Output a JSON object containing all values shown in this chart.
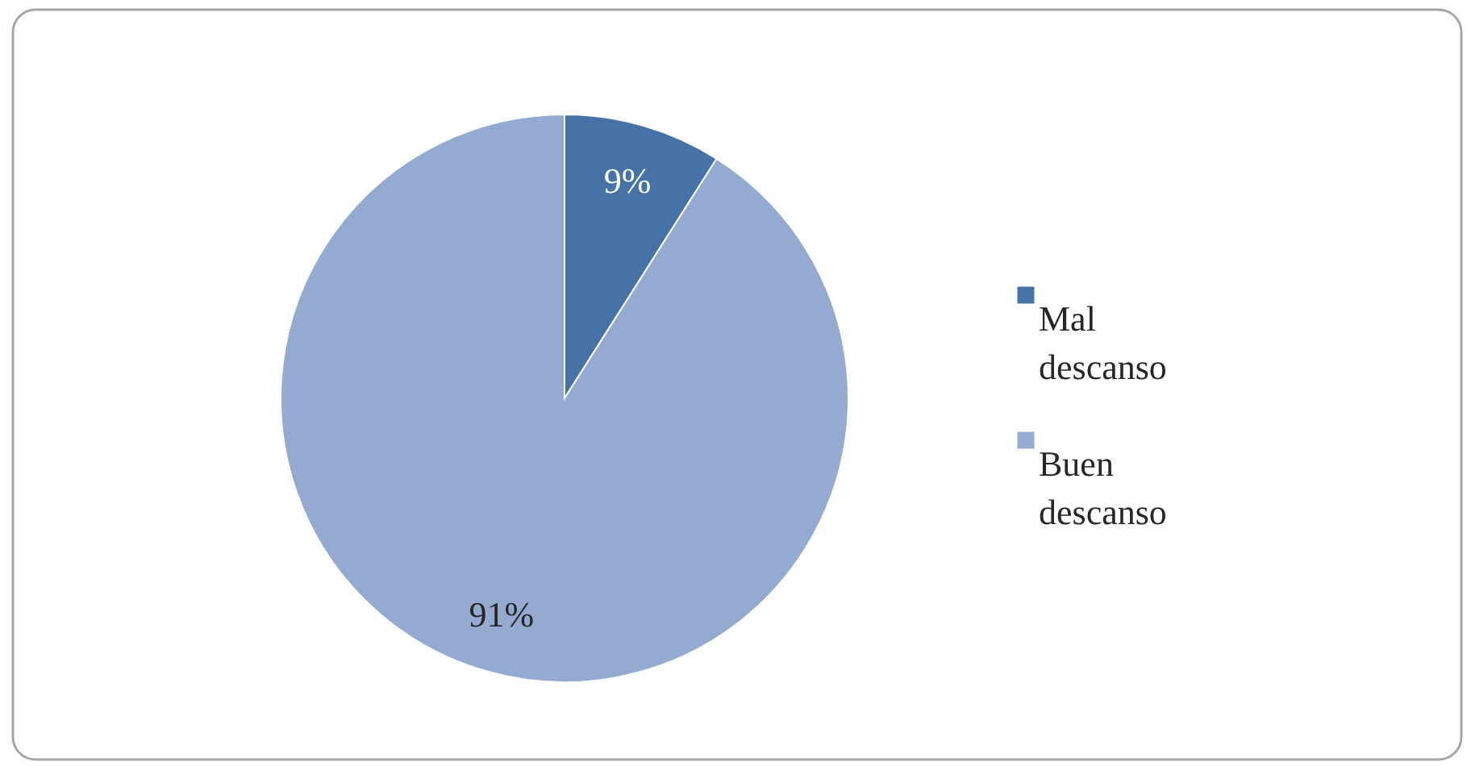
{
  "chart_data": {
    "type": "pie",
    "categories": [
      "Mal descanso",
      "Buen descanso"
    ],
    "values": [
      9,
      91
    ],
    "colors": [
      "#4672a8",
      "#95aad1"
    ],
    "value_labels": [
      "9%",
      "91%"
    ],
    "legend": "right"
  }
}
